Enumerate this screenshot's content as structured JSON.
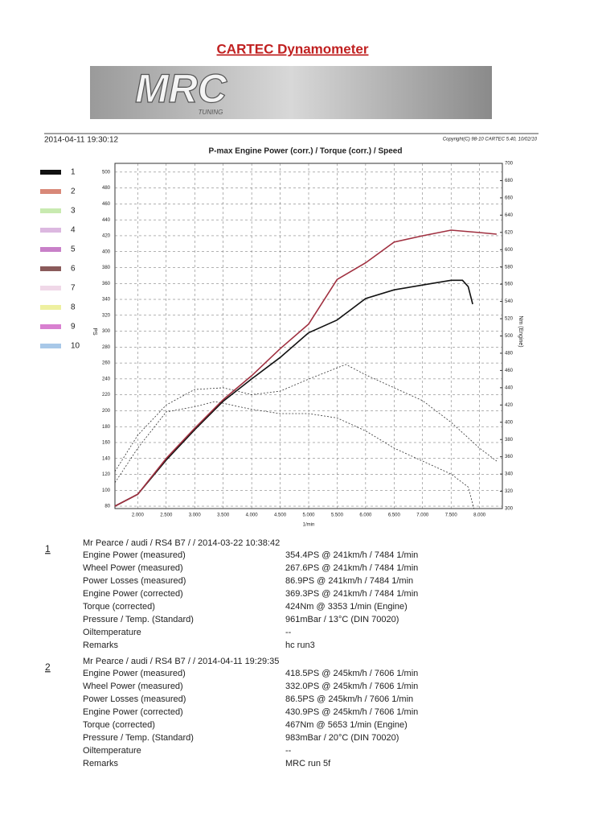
{
  "title": "CARTEC Dynamometer",
  "banner": {
    "logo": "MRC",
    "tagline": "TUNING"
  },
  "header": {
    "date": "2014-04-11 19:30:12",
    "copyright": "Copyright(C) 98-10 CARTEC 5.40, 10/02/10"
  },
  "chart_data": {
    "type": "line",
    "title": "P-max Engine Power (corr.) / Torque (corr.) / Speed",
    "x_label": "1/min",
    "y_label": "PS",
    "y2_label": "Nm (Engine)",
    "xlim": [
      1600,
      8400
    ],
    "xticks": [
      {
        "value": 2000,
        "label": "2.000"
      },
      {
        "value": 2500,
        "label": "2.500"
      },
      {
        "value": 3000,
        "label": "3.000"
      },
      {
        "value": 3500,
        "label": "3.500"
      },
      {
        "value": 4000,
        "label": "4.000"
      },
      {
        "value": 4500,
        "label": "4.500"
      },
      {
        "value": 5000,
        "label": "5.000"
      },
      {
        "value": 5500,
        "label": "5.500"
      },
      {
        "value": 6000,
        "label": "6.000"
      },
      {
        "value": 6500,
        "label": "6.500"
      },
      {
        "value": 7000,
        "label": "7.000"
      },
      {
        "value": 7500,
        "label": "7.500"
      },
      {
        "value": 8000,
        "label": "8.000"
      }
    ],
    "ylim": [
      77,
      511
    ],
    "yticks": [
      80,
      100,
      120,
      140,
      160,
      180,
      200,
      220,
      240,
      260,
      280,
      300,
      320,
      340,
      360,
      380,
      400,
      420,
      440,
      460,
      480,
      500
    ],
    "y2lim": [
      300,
      700
    ],
    "y2ticks": [
      300,
      320,
      340,
      360,
      380,
      400,
      420,
      440,
      460,
      480,
      500,
      520,
      540,
      560,
      580,
      600,
      620,
      640,
      660,
      680,
      700
    ],
    "grid": true,
    "legend": [
      {
        "label": "1",
        "color": "#111111"
      },
      {
        "label": "2",
        "color": "#d88878"
      },
      {
        "label": "3",
        "color": "#c8eab0"
      },
      {
        "label": "4",
        "color": "#dcb8e0"
      },
      {
        "label": "5",
        "color": "#c880c8"
      },
      {
        "label": "6",
        "color": "#8a5a5a"
      },
      {
        "label": "7",
        "color": "#f0d8e8"
      },
      {
        "label": "8",
        "color": "#eef0a0"
      },
      {
        "label": "9",
        "color": "#d880d0"
      },
      {
        "label": "10",
        "color": "#a8c8e8"
      }
    ],
    "series": [
      {
        "color": "#111111",
        "line_style": "solid",
        "x": [
          1600,
          2000,
          2500,
          3000,
          3500,
          4000,
          4500,
          5000,
          5500,
          6000,
          6500,
          7000,
          7500,
          7700,
          7800,
          7880
        ],
        "values": [
          80,
          95,
          138,
          176,
          212,
          240,
          267,
          298,
          314,
          341,
          352,
          358,
          364,
          364,
          356,
          334
        ]
      },
      {
        "color": "#a03040",
        "line_style": "solid",
        "x": [
          1600,
          2000,
          2500,
          3000,
          3500,
          4000,
          4500,
          5000,
          5500,
          6000,
          6500,
          7000,
          7500,
          8000,
          8300
        ],
        "values": [
          80,
          95,
          140,
          178,
          214,
          244,
          278,
          309,
          365,
          386,
          412,
          420,
          427,
          424,
          422
        ]
      },
      {
        "axis": "y2",
        "color": "#333333",
        "line_style": "dashed",
        "x": [
          1600,
          2000,
          2500,
          3000,
          3353,
          4000,
          4500,
          5000,
          5500,
          6000,
          6500,
          7000,
          7500,
          7800,
          7900
        ],
        "values": [
          330,
          370,
          412,
          418,
          424,
          415,
          410,
          410,
          405,
          390,
          370,
          355,
          340,
          325,
          300
        ]
      },
      {
        "axis": "y2",
        "color": "#333333",
        "line_style": "dashed",
        "x": [
          1600,
          2000,
          2500,
          3000,
          3500,
          4000,
          4500,
          5000,
          5653,
          6000,
          6500,
          7000,
          7500,
          8000,
          8300
        ],
        "values": [
          343,
          385,
          420,
          438,
          440,
          432,
          436,
          450,
          467,
          455,
          440,
          425,
          400,
          370,
          355
        ]
      }
    ]
  },
  "runs": [
    {
      "number": "1",
      "header": "Mr Pearce / audi / RS4 B7 /  / 2014-03-22 10:38:42",
      "rows": [
        [
          "Engine Power (measured)",
          "354.4PS @ 241km/h / 7484 1/min"
        ],
        [
          "Wheel Power (measured)",
          "267.6PS @ 241km/h / 7484 1/min"
        ],
        [
          "Power Losses (measured)",
          "86.9PS @ 241km/h / 7484 1/min"
        ],
        [
          "Engine Power (corrected)",
          "369.3PS @ 241km/h / 7484 1/min"
        ],
        [
          "Torque (corrected)",
          "424Nm @ 3353 1/min (Engine)"
        ],
        [
          "Pressure / Temp. (Standard)",
          "961mBar / 13°C   (DIN 70020)"
        ],
        [
          "Oiltemperature",
          "--"
        ],
        [
          "Remarks",
          "hc run3"
        ]
      ]
    },
    {
      "number": "2",
      "header": "Mr Pearce / audi / RS4 B7 /  / 2014-04-11 19:29:35",
      "rows": [
        [
          "Engine Power (measured)",
          "418.5PS @ 245km/h / 7606 1/min"
        ],
        [
          "Wheel Power (measured)",
          "332.0PS @ 245km/h / 7606 1/min"
        ],
        [
          "Power Losses (measured)",
          "86.5PS @ 245km/h / 7606 1/min"
        ],
        [
          "Engine Power (corrected)",
          "430.9PS @ 245km/h / 7606 1/min"
        ],
        [
          "Torque (corrected)",
          "467Nm @ 5653 1/min (Engine)"
        ],
        [
          "Pressure / Temp. (Standard)",
          "983mBar / 20°C   (DIN 70020)"
        ],
        [
          "Oiltemperature",
          "--"
        ],
        [
          "Remarks",
          "MRC run 5f"
        ]
      ]
    }
  ]
}
